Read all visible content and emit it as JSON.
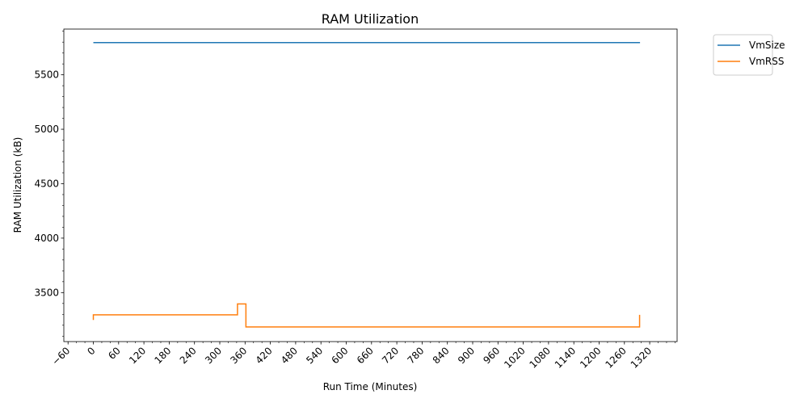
{
  "chart_data": {
    "type": "line",
    "title": "RAM Utilization",
    "xlabel": "Run Time (Minutes)",
    "ylabel": "RAM Utilization (kB)",
    "xlim": [
      -70,
      1385
    ],
    "ylim": [
      3050,
      5920
    ],
    "x_ticks": [
      -60,
      0,
      60,
      120,
      180,
      240,
      300,
      360,
      420,
      480,
      540,
      600,
      660,
      720,
      780,
      840,
      900,
      960,
      1020,
      1080,
      1140,
      1200,
      1260,
      1320
    ],
    "x_tick_labels": [
      "−60",
      "0",
      "60",
      "120",
      "180",
      "240",
      "300",
      "360",
      "420",
      "480",
      "540",
      "600",
      "660",
      "720",
      "780",
      "840",
      "900",
      "960",
      "1020",
      "1080",
      "1140",
      "1200",
      "1260",
      "1320"
    ],
    "x_minor_step": 20,
    "y_ticks": [
      3500,
      4000,
      4500,
      5000,
      5500
    ],
    "y_tick_labels": [
      "3500",
      "4000",
      "4500",
      "5000",
      "5500"
    ],
    "y_minor_step": 100,
    "grid": false,
    "legend_position": "outside-top-right",
    "series": [
      {
        "name": "VmSize",
        "color": "#1f77b4",
        "x": [
          0,
          1297
        ],
        "y": [
          5796,
          5796
        ]
      },
      {
        "name": "VmRSS",
        "color": "#ff7f0e",
        "x": [
          0,
          0,
          342,
          342,
          362,
          362,
          1296,
          1296
        ],
        "y": [
          3248,
          3296,
          3296,
          3396,
          3396,
          3184,
          3184,
          3296
        ]
      }
    ]
  }
}
